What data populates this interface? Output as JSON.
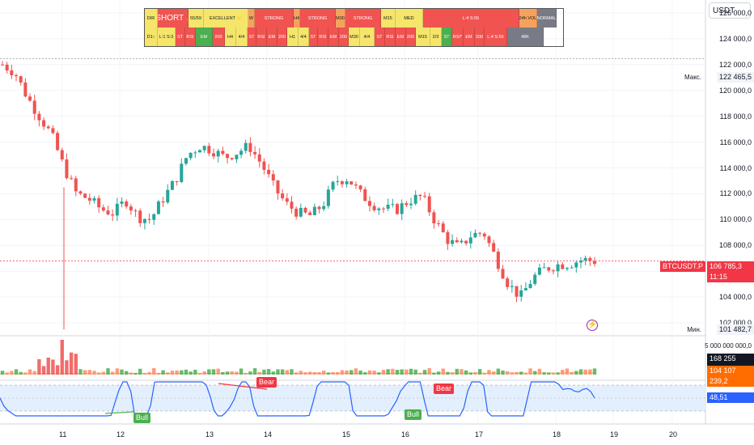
{
  "toolbar": {
    "unit": "USDT"
  },
  "dashboard": {
    "row1": [
      {
        "t": "DIR",
        "bg": "#f5e56b"
      },
      {
        "t": "SHORT ↓",
        "bg": "#f05350",
        "fg": "#fff",
        "big": true
      },
      {
        "t": "55/59",
        "bg": "#f5e56b"
      },
      {
        "t": "EXCELLENT ⭐",
        "bg": "#f5e56b"
      },
      {
        "t": "W",
        "bg": "#f5a25d"
      },
      {
        "t": "STRONG",
        "bg": "#f05350",
        "fg": "#fff"
      },
      {
        "t": "H4",
        "bg": "#f5a25d"
      },
      {
        "t": "STRONG",
        "bg": "#f05350",
        "fg": "#fff"
      },
      {
        "t": "M30",
        "bg": "#f5a25d"
      },
      {
        "t": "STRONG",
        "bg": "#f05350",
        "fg": "#fff"
      },
      {
        "t": "M15",
        "bg": "#f5e56b"
      },
      {
        "t": "MED",
        "bg": "#f5e56b"
      },
      {
        "t": "L:4 S:55",
        "bg": "#f05350",
        "fg": "#fff"
      },
      {
        "t": "24h VOL",
        "bg": "#f5a25d"
      },
      {
        "t": "NORMAL",
        "bg": "#787b86",
        "fg": "#fff"
      }
    ],
    "row2": [
      {
        "t": "D1↑",
        "bg": "#f5e56b"
      },
      {
        "t": "L:1 S:3",
        "bg": "#f5e56b"
      },
      {
        "t": "ST",
        "bg": "#f05350",
        "fg": "#fff"
      },
      {
        "t": "RSI",
        "bg": "#f05350",
        "fg": "#fff"
      },
      {
        "t": "EM",
        "bg": "#4caf50",
        "fg": "#fff"
      },
      {
        "t": "200",
        "bg": "#f05350",
        "fg": "#fff"
      },
      {
        "t": "H4",
        "bg": "#f5e56b"
      },
      {
        "t": "4/4",
        "bg": "#f5e56b"
      },
      {
        "t": "ST",
        "bg": "#f05350",
        "fg": "#fff"
      },
      {
        "t": "RSI",
        "bg": "#f05350",
        "fg": "#fff"
      },
      {
        "t": "EM",
        "bg": "#f05350",
        "fg": "#fff"
      },
      {
        "t": "200",
        "bg": "#f05350",
        "fg": "#fff"
      },
      {
        "t": "H1",
        "bg": "#f5e56b"
      },
      {
        "t": "4/4",
        "bg": "#f5e56b"
      },
      {
        "t": "ST",
        "bg": "#f05350",
        "fg": "#fff"
      },
      {
        "t": "RSI",
        "bg": "#f05350",
        "fg": "#fff"
      },
      {
        "t": "EM",
        "bg": "#f05350",
        "fg": "#fff"
      },
      {
        "t": "200",
        "bg": "#f05350",
        "fg": "#fff"
      },
      {
        "t": "M30",
        "bg": "#f5e56b"
      },
      {
        "t": "4/4",
        "bg": "#f5e56b"
      },
      {
        "t": "ST",
        "bg": "#f05350",
        "fg": "#fff"
      },
      {
        "t": "RSI",
        "bg": "#f05350",
        "fg": "#fff"
      },
      {
        "t": "EM",
        "bg": "#f05350",
        "fg": "#fff"
      },
      {
        "t": "200",
        "bg": "#f05350",
        "fg": "#fff"
      },
      {
        "t": "M15",
        "bg": "#f5e56b"
      },
      {
        "t": "2/3",
        "bg": "#f5e56b"
      },
      {
        "t": "ST",
        "bg": "#4caf50",
        "fg": "#fff"
      },
      {
        "t": "RSI*",
        "bg": "#f05350",
        "fg": "#fff"
      },
      {
        "t": "EM",
        "bg": "#f05350",
        "fg": "#fff"
      },
      {
        "t": "200",
        "bg": "#f05350",
        "fg": "#fff"
      },
      {
        "t": "L:4 S:55",
        "bg": "#f05350",
        "fg": "#fff"
      },
      {
        "t": "48K",
        "bg": "#787b86",
        "fg": "#fff"
      }
    ]
  },
  "price_axis": {
    "ticks": [
      "126 000,0",
      "124 000,0",
      "122 000,0",
      "120 000,0",
      "118 000,0",
      "116 000,0",
      "114 000,0",
      "112 000,0",
      "110 000,0",
      "108 000,0",
      "106 000,0",
      "104 000,0",
      "102 000,0"
    ],
    "tick_values": [
      126000,
      124000,
      122000,
      120000,
      118000,
      116000,
      114000,
      112000,
      110000,
      108000,
      106000,
      104000,
      102000
    ],
    "max_label": "Макс.",
    "max_value": "122 465,5",
    "min_label": "Мин.",
    "min_value": "101 482,7",
    "symbol": "BTCUSDT.P",
    "last_price": "106 785,3",
    "countdown": "11:15"
  },
  "volume_axis": {
    "top_value": "5 000 000 000,0",
    "current_volume": "168 255 729,9",
    "ma_volume": "104 107 239,2"
  },
  "rsi_axis": {
    "value": "48,51"
  },
  "time_axis": {
    "labels": [
      "11",
      "12",
      "13",
      "14",
      "15",
      "16",
      "17",
      "18",
      "19",
      "20"
    ]
  },
  "signals": {
    "bear": "Bear",
    "bull": "Bull"
  },
  "colors": {
    "up": "#26a69a",
    "down": "#ef5350",
    "rsi": "#2962ff",
    "accent": "#f23645",
    "band": "#e3effd",
    "vol_up": "#4caf50",
    "vol_down": "#ff8a65"
  },
  "icons": {
    "alert": "lightning-icon"
  },
  "chart_data": {
    "type": "candlestick",
    "symbol": "BTCUSDT.P",
    "x_labels": [
      "11",
      "12",
      "13",
      "14",
      "15",
      "16",
      "17",
      "18",
      "19",
      "20"
    ],
    "close_path": [
      122000,
      121400,
      119500,
      118000,
      116500,
      114000,
      112000,
      111600,
      110800,
      110500,
      111500,
      110200,
      110000,
      111600,
      113000,
      115000,
      115700,
      115400,
      114800,
      115200,
      115700,
      114300,
      112500,
      111200,
      110500,
      110300,
      111200,
      113000,
      113200,
      112000,
      111200,
      110800,
      110800,
      111500,
      111800,
      110000,
      108500,
      107800,
      108800,
      109000,
      107000,
      105000,
      104000,
      105500,
      106200,
      106500,
      106600,
      106900,
      106785
    ],
    "ylim": [
      101000,
      127000
    ],
    "max": 122465.5,
    "min": 101482.7,
    "last": 106785.3,
    "rsi": {
      "value": 48.51
    }
  }
}
